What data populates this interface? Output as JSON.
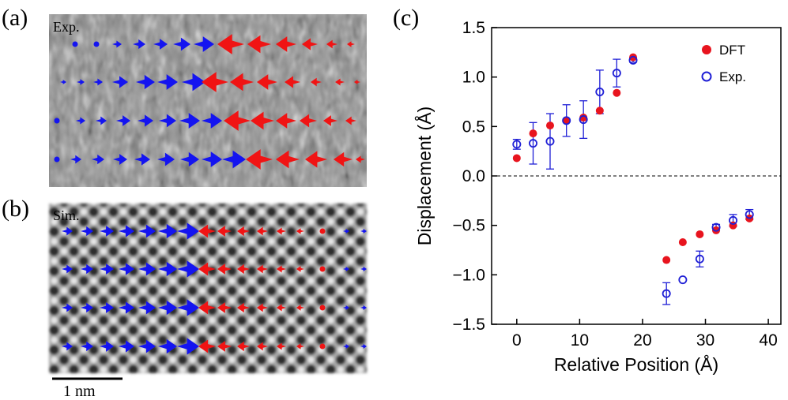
{
  "panels": {
    "a": {
      "label": "(a)",
      "inset": "Exp."
    },
    "b": {
      "label": "(b)",
      "inset": "Sim."
    },
    "c": {
      "label": "(c)"
    }
  },
  "scale_bar": {
    "label": "1 nm"
  },
  "colors": {
    "dft": "#e8141e",
    "exp": "#1f1fd6",
    "arrow_blue": "#1414f0",
    "arrow_red": "#f01414"
  },
  "chart_data": {
    "type": "scatter",
    "xlabel": "Relative Position (Å)",
    "ylabel": "Displacement (Å)",
    "xlim": [
      -4,
      42
    ],
    "ylim": [
      -1.5,
      1.5
    ],
    "xticks": [
      "0",
      "10",
      "20",
      "30",
      "40"
    ],
    "xtick_values": [
      0,
      10,
      20,
      30,
      40
    ],
    "yticks": [
      "1.5",
      "1.0",
      "0.5",
      "0.0",
      "−0.5",
      "−1.0",
      "−1.5"
    ],
    "ytick_values": [
      1.5,
      1.0,
      0.5,
      0.0,
      -0.5,
      -1.0,
      -1.5
    ],
    "reference_line": 0.0,
    "legend_position": "top-right",
    "series": [
      {
        "name": "DFT",
        "marker": "filled-circle",
        "x": [
          0,
          2.6,
          5.3,
          7.9,
          10.6,
          13.2,
          15.9,
          18.5,
          23.8,
          26.4,
          29.1,
          31.7,
          34.4,
          37.0
        ],
        "y": [
          0.18,
          0.43,
          0.51,
          0.56,
          0.59,
          0.66,
          0.84,
          1.2,
          -0.85,
          -0.67,
          -0.59,
          -0.55,
          -0.5,
          -0.43
        ]
      },
      {
        "name": "Exp.",
        "marker": "open-circle",
        "x": [
          0,
          2.6,
          5.3,
          7.9,
          10.6,
          13.2,
          15.9,
          18.5,
          23.8,
          26.4,
          29.1,
          31.7,
          34.4,
          37.0
        ],
        "y": [
          0.32,
          0.33,
          0.35,
          0.56,
          0.57,
          0.85,
          1.04,
          1.17,
          -1.19,
          -1.05,
          -0.84,
          -0.52,
          -0.45,
          -0.39
        ],
        "yerr": [
          0.05,
          0.21,
          0.28,
          0.16,
          0.19,
          0.22,
          0.14,
          0.02,
          0.11,
          0.0,
          0.08,
          0.03,
          0.06,
          0.05
        ]
      }
    ]
  }
}
